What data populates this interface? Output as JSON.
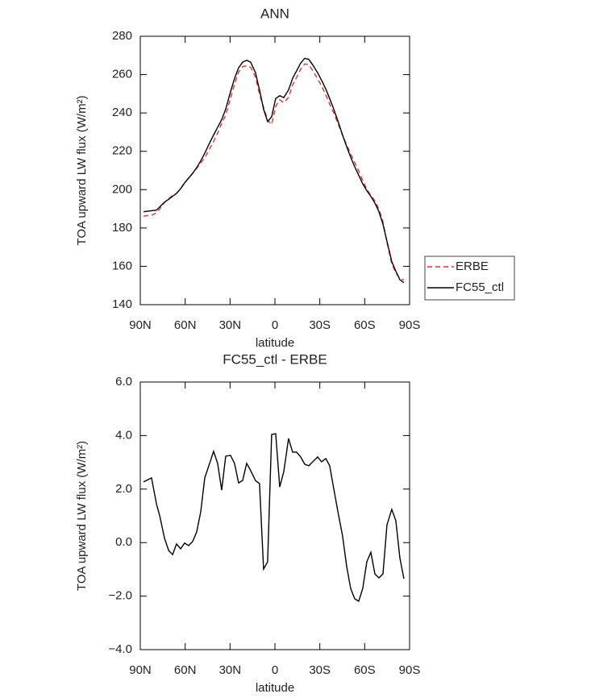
{
  "chart_data": [
    {
      "type": "line",
      "title": "ANN",
      "xlabel": "latitude",
      "ylabel": "TOA upward LW flux (W/m²)",
      "x": [
        87.8,
        82.5,
        79.2,
        77,
        73.8,
        71,
        68.4,
        65.8,
        63,
        60.4,
        57.7,
        55,
        52.3,
        49.6,
        46.9,
        44.2,
        41,
        38.3,
        35.6,
        32.9,
        29.7,
        27,
        24.3,
        21.6,
        18.9,
        16.2,
        13,
        10.3,
        7.6,
        4.9,
        2.2,
        -0.5,
        -3.2,
        -5.9,
        -9.1,
        -11.8,
        -14.5,
        -17.2,
        -19.9,
        -22.6,
        -25.3,
        -28.5,
        -31.2,
        -34,
        -36.6,
        -39.3,
        -42,
        -45.2,
        -47.9,
        -50.6,
        -53.3,
        -56,
        -58.7,
        -61.4,
        -64.1,
        -66.8,
        -69.5,
        -72.2,
        -74.9,
        -78.1,
        -80.8,
        -83.5,
        -86.2
      ],
      "series": [
        {
          "name": "ERBE",
          "color": "#e8312f",
          "style": "dashed",
          "values": [
            186.2,
            186.6,
            187.9,
            190.0,
            193.3,
            195.3,
            197.0,
            198.1,
            200.7,
            203.5,
            206.1,
            208.5,
            211.1,
            213.9,
            216.6,
            220.6,
            225.1,
            229.5,
            234.5,
            238.8,
            247.7,
            255.0,
            261.3,
            264.2,
            264.5,
            263.8,
            258.7,
            249.8,
            243.0,
            236.2,
            234.0,
            243.4,
            246.9,
            245.4,
            248.1,
            254.6,
            258.6,
            262.8,
            265.6,
            265.1,
            262.0,
            257.8,
            254.0,
            249.4,
            244.6,
            240.0,
            234.8,
            228.3,
            223.4,
            218.7,
            214.1,
            209.7,
            204.7,
            200.2,
            196.9,
            194.2,
            189.8,
            183.2,
            172.3,
            161.3,
            156.7,
            153.6,
            152.9
          ]
        },
        {
          "name": "FC55_ctl",
          "color": "#000000",
          "style": "solid",
          "values": [
            188.5,
            189,
            189.3,
            191,
            193.5,
            195,
            196.5,
            198,
            200.5,
            203.5,
            206,
            208.5,
            211.5,
            215,
            219,
            223.5,
            228.5,
            232.5,
            236.5,
            242,
            251,
            258,
            263.5,
            266.5,
            267.5,
            266.5,
            261,
            252,
            242,
            235.5,
            238,
            247.5,
            249,
            248,
            252,
            258,
            262,
            266,
            268.5,
            268,
            265,
            261,
            257,
            252.5,
            247.5,
            242,
            236,
            228.5,
            222.5,
            217,
            212,
            207.5,
            203,
            199.5,
            196.5,
            193,
            188.5,
            182,
            173,
            162.5,
            157.5,
            153,
            151.5
          ]
        }
      ],
      "xlim": [
        90,
        -90
      ],
      "xticks": [
        {
          "value": 90,
          "label": "90N"
        },
        {
          "value": 60,
          "label": "60N"
        },
        {
          "value": 30,
          "label": "30N"
        },
        0,
        {
          "value": -30,
          "label": "30S"
        },
        {
          "value": -60,
          "label": "60S"
        },
        {
          "value": -90,
          "label": "90S"
        }
      ],
      "ylim": [
        140,
        280
      ],
      "yticks": [
        140,
        160,
        180,
        200,
        220,
        240,
        260,
        280
      ],
      "legend": "right"
    },
    {
      "type": "line",
      "title": "FC55_ctl - ERBE",
      "xlabel": "latitude",
      "ylabel": "TOA upward LW flux (W/m²)",
      "x": [
        87.8,
        82.5,
        79.2,
        77,
        73.8,
        71,
        68.4,
        65.8,
        63,
        60.4,
        57.7,
        55,
        52.3,
        49.6,
        46.9,
        44.2,
        41,
        38.3,
        35.6,
        32.9,
        29.7,
        27,
        24.3,
        21.6,
        18.9,
        16.2,
        13,
        10.3,
        7.6,
        4.9,
        2.2,
        -0.5,
        -3.2,
        -5.9,
        -9.1,
        -11.8,
        -14.5,
        -17.2,
        -19.9,
        -22.6,
        -25.3,
        -28.5,
        -31.2,
        -34,
        -36.6,
        -39.3,
        -42,
        -45.2,
        -47.9,
        -50.6,
        -53.3,
        -56,
        -58.7,
        -61.4,
        -64.1,
        -66.8,
        -69.5,
        -72.2,
        -74.9,
        -78.1,
        -80.8,
        -83.5,
        -86.2
      ],
      "series": [
        {
          "color": "#000000",
          "style": "solid",
          "values": [
            2.27,
            2.42,
            1.45,
            1.0,
            0.16,
            -0.3,
            -0.45,
            -0.05,
            -0.23,
            -0.02,
            -0.11,
            0.04,
            0.4,
            1.15,
            2.42,
            2.87,
            3.41,
            2.96,
            1.96,
            3.23,
            3.26,
            2.96,
            2.23,
            2.32,
            2.96,
            2.69,
            2.32,
            2.2,
            -0.99,
            -0.72,
            4.04,
            4.07,
            2.08,
            2.65,
            3.89,
            3.38,
            3.38,
            3.2,
            2.93,
            2.87,
            3.02,
            3.2,
            3.02,
            3.14,
            2.87,
            2.02,
            1.18,
            0.25,
            -0.87,
            -1.71,
            -2.1,
            -2.19,
            -1.71,
            -0.72,
            -0.36,
            -1.17,
            -1.32,
            -1.17,
            0.67,
            1.24,
            0.82,
            -0.57,
            -1.35
          ]
        }
      ],
      "xlim": [
        90,
        -90
      ],
      "xticks": [
        {
          "value": 90,
          "label": "90N"
        },
        {
          "value": 60,
          "label": "60N"
        },
        {
          "value": 30,
          "label": "30N"
        },
        0,
        {
          "value": -30,
          "label": "30S"
        },
        {
          "value": -60,
          "label": "60S"
        },
        {
          "value": -90,
          "label": "90S"
        }
      ],
      "ylim": [
        -4,
        6
      ],
      "yticks": [
        {
          "value": -4,
          "label": "−4.0"
        },
        {
          "value": -2,
          "label": "−2.0"
        },
        {
          "value": 0,
          "label": "0.0"
        },
        {
          "value": 2,
          "label": "2.0"
        },
        {
          "value": 4,
          "label": "4.0"
        },
        {
          "value": 6,
          "label": "6.0"
        }
      ]
    }
  ]
}
